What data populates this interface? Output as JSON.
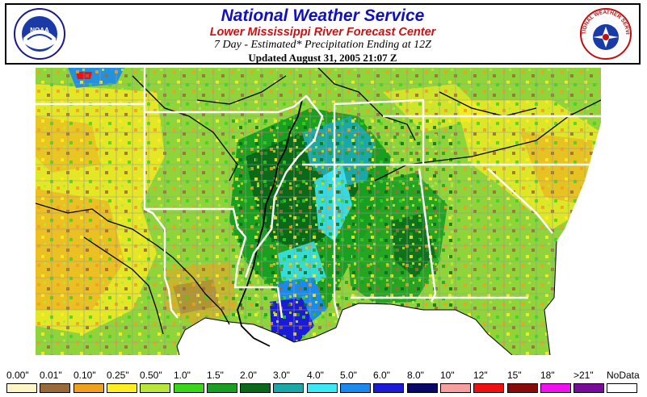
{
  "header": {
    "title": "National Weather Service",
    "subtitle": "Lower Mississippi River Forecast Center",
    "product": "7 Day - Estimated* Precipitation Ending at 12Z",
    "updated": "Updated August 31, 2005 21:07 Z",
    "noaa_logo_text": "NOAA",
    "nws_logo_text": "NATIONAL WEATHER SERVICE"
  },
  "map": {
    "background_color": "#ffffff",
    "state_border_color": "#ffffff",
    "county_border_color": "#9a9a9a",
    "river_color": "#000000",
    "land_base_color": "#59c03a"
  },
  "legend": {
    "items": [
      {
        "label": "0.00\"",
        "color": "#fff6c8"
      },
      {
        "label": "0.01\"",
        "color": "#9a6a3a"
      },
      {
        "label": "0.10\"",
        "color": "#f0a020"
      },
      {
        "label": "0.25\"",
        "color": "#ffee20"
      },
      {
        "label": "0.50\"",
        "color": "#b8e63a"
      },
      {
        "label": "1.0\"",
        "color": "#3ad61a"
      },
      {
        "label": "1.5\"",
        "color": "#1aa020"
      },
      {
        "label": "2.0\"",
        "color": "#0a6a1a"
      },
      {
        "label": "3.0\"",
        "color": "#1aa8a8"
      },
      {
        "label": "4.0\"",
        "color": "#3ae8f8"
      },
      {
        "label": "5.0\"",
        "color": "#1a8af0"
      },
      {
        "label": "6.0\"",
        "color": "#1a1ad8"
      },
      {
        "label": "8.0\"",
        "color": "#08086a"
      },
      {
        "label": "10\"",
        "color": "#f8a0a0"
      },
      {
        "label": "12\"",
        "color": "#f01010"
      },
      {
        "label": "15\"",
        "color": "#8a0a0a"
      },
      {
        "label": "18\"",
        "color": "#f010f0"
      },
      {
        "label": ">21\"",
        "color": "#7a0a9a"
      },
      {
        "label": "NoData",
        "color": "#ffffff"
      }
    ]
  }
}
